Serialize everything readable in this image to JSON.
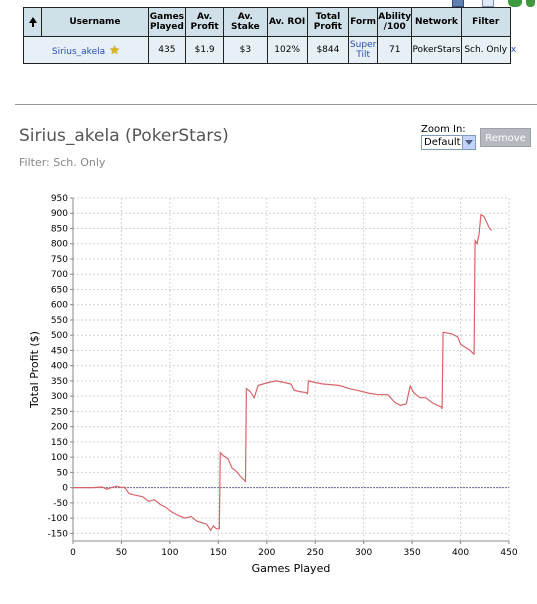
{
  "table": {
    "headers": [
      "Username",
      "Games Played",
      "Av. Profit",
      "Av. Stake",
      "Av. ROI",
      "Total Profit",
      "Form",
      "Ability /100",
      "Network",
      "Filter"
    ],
    "row": {
      "username": "Sirius_akela",
      "games_played": "435",
      "av_profit": "$1.9",
      "av_stake": "$3",
      "av_roi": "102%",
      "total_profit": "$844",
      "form": "Super Tilt",
      "ability": "71",
      "network": "PokerStars",
      "filter": "Sch. Only",
      "remove_x": "x"
    }
  },
  "player": {
    "title": "Sirius_akela (PokerStars)",
    "filter": "Filter: Sch. Only"
  },
  "zoom": {
    "label": "Zoom In:",
    "selected": "Default"
  },
  "remove_label": "Remove",
  "colors": {
    "line": "#d9646a",
    "header_bg": "#cfe0e9",
    "row_bg": "#e6f0f6",
    "link": "#2a4fb0"
  },
  "chart_data": {
    "type": "line",
    "xlabel": "Games Played",
    "ylabel": "Total Profit ($)",
    "xlim": [
      0,
      450
    ],
    "ylim": [
      -175,
      950
    ],
    "xticks": [
      0,
      50,
      100,
      150,
      200,
      250,
      300,
      350,
      400,
      450
    ],
    "yticks": [
      -150,
      -100,
      -50,
      0,
      50,
      100,
      150,
      200,
      250,
      300,
      350,
      400,
      450,
      500,
      550,
      600,
      650,
      700,
      750,
      800,
      850,
      900,
      950
    ],
    "grid": true,
    "zero_line": true,
    "series": [
      {
        "values": [
          [
            0,
            0
          ],
          [
            20,
            0
          ],
          [
            30,
            2
          ],
          [
            35,
            -5
          ],
          [
            40,
            0
          ],
          [
            45,
            5
          ],
          [
            50,
            0
          ],
          [
            53,
            2
          ],
          [
            58,
            -20
          ],
          [
            65,
            -25
          ],
          [
            72,
            -30
          ],
          [
            78,
            -45
          ],
          [
            84,
            -40
          ],
          [
            90,
            -55
          ],
          [
            96,
            -65
          ],
          [
            102,
            -80
          ],
          [
            108,
            -90
          ],
          [
            115,
            -100
          ],
          [
            122,
            -95
          ],
          [
            128,
            -110
          ],
          [
            133,
            -115
          ],
          [
            138,
            -120
          ],
          [
            142,
            -140
          ],
          [
            145,
            -125
          ],
          [
            148,
            -135
          ],
          [
            151,
            -135
          ],
          [
            152,
            115
          ],
          [
            155,
            105
          ],
          [
            160,
            95
          ],
          [
            164,
            65
          ],
          [
            168,
            55
          ],
          [
            172,
            40
          ],
          [
            175,
            30
          ],
          [
            178,
            20
          ],
          [
            179,
            325
          ],
          [
            183,
            315
          ],
          [
            187,
            295
          ],
          [
            191,
            335
          ],
          [
            196,
            340
          ],
          [
            202,
            345
          ],
          [
            210,
            350
          ],
          [
            218,
            345
          ],
          [
            225,
            340
          ],
          [
            228,
            320
          ],
          [
            234,
            315
          ],
          [
            240,
            312
          ],
          [
            242,
            308
          ],
          [
            243,
            350
          ],
          [
            250,
            345
          ],
          [
            258,
            340
          ],
          [
            266,
            338
          ],
          [
            275,
            335
          ],
          [
            285,
            325
          ],
          [
            295,
            318
          ],
          [
            305,
            310
          ],
          [
            315,
            305
          ],
          [
            325,
            305
          ],
          [
            332,
            280
          ],
          [
            338,
            270
          ],
          [
            344,
            275
          ],
          [
            348,
            333
          ],
          [
            352,
            310
          ],
          [
            358,
            295
          ],
          [
            364,
            295
          ],
          [
            370,
            280
          ],
          [
            376,
            270
          ],
          [
            380,
            265
          ],
          [
            381,
            258
          ],
          [
            382,
            510
          ],
          [
            390,
            505
          ],
          [
            397,
            495
          ],
          [
            400,
            470
          ],
          [
            405,
            460
          ],
          [
            410,
            450
          ],
          [
            413,
            440
          ],
          [
            414,
            438
          ],
          [
            415,
            810
          ],
          [
            417,
            800
          ],
          [
            419,
            830
          ],
          [
            421,
            895
          ],
          [
            424,
            890
          ],
          [
            427,
            870
          ],
          [
            430,
            850
          ],
          [
            432,
            844
          ]
        ]
      }
    ]
  }
}
